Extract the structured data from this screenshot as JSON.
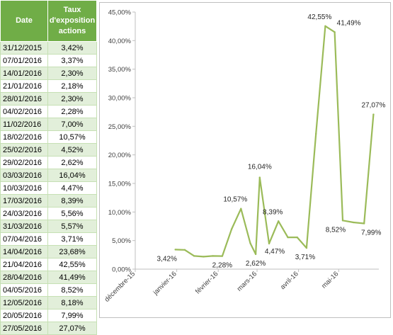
{
  "table": {
    "headers": [
      "Date",
      "Taux d'exposition actions"
    ],
    "rows": [
      [
        "31/12/2015",
        "3,42%"
      ],
      [
        "07/01/2016",
        "3,37%"
      ],
      [
        "14/01/2016",
        "2,30%"
      ],
      [
        "21/01/2016",
        "2,18%"
      ],
      [
        "28/01/2016",
        "2,30%"
      ],
      [
        "04/02/2016",
        "2,28%"
      ],
      [
        "11/02/2016",
        "7,00%"
      ],
      [
        "18/02/2016",
        "10,57%"
      ],
      [
        "25/02/2016",
        "4,52%"
      ],
      [
        "29/02/2016",
        "2,62%"
      ],
      [
        "03/03/2016",
        "16,04%"
      ],
      [
        "10/03/2016",
        "4,47%"
      ],
      [
        "17/03/2016",
        "8,39%"
      ],
      [
        "24/03/2016",
        "5,56%"
      ],
      [
        "31/03/2016",
        "5,57%"
      ],
      [
        "07/04/2016",
        "3,71%"
      ],
      [
        "14/04/2016",
        "23,68%"
      ],
      [
        "21/04/2016",
        "42,55%"
      ],
      [
        "28/04/2016",
        "41,49%"
      ],
      [
        "04/05/2016",
        "8,52%"
      ],
      [
        "12/05/2016",
        "8,18%"
      ],
      [
        "20/05/2016",
        "7,99%"
      ],
      [
        "27/05/2016",
        "27,07%"
      ]
    ]
  },
  "chart_data": {
    "type": "line",
    "title": "",
    "xlabel": "",
    "ylabel": "",
    "line_color": "#9bbb59",
    "x": [
      "2015-12-31",
      "2016-01-07",
      "2016-01-14",
      "2016-01-21",
      "2016-01-28",
      "2016-02-04",
      "2016-02-11",
      "2016-02-18",
      "2016-02-25",
      "2016-02-29",
      "2016-03-03",
      "2016-03-10",
      "2016-03-17",
      "2016-03-24",
      "2016-03-31",
      "2016-04-07",
      "2016-04-14",
      "2016-04-21",
      "2016-04-28",
      "2016-05-04",
      "2016-05-12",
      "2016-05-20",
      "2016-05-27"
    ],
    "y": [
      3.42,
      3.37,
      2.3,
      2.18,
      2.3,
      2.28,
      7.0,
      10.57,
      4.52,
      2.62,
      16.04,
      4.47,
      8.39,
      5.56,
      5.57,
      3.71,
      23.68,
      42.55,
      41.49,
      8.52,
      8.18,
      7.99,
      27.07
    ],
    "ylim": [
      0,
      45
    ],
    "y_ticks": [
      0,
      5,
      10,
      15,
      20,
      25,
      30,
      35,
      40,
      45
    ],
    "y_tick_labels": [
      "0,00%",
      "5,00%",
      "10,00%",
      "15,00%",
      "20,00%",
      "25,00%",
      "30,00%",
      "35,00%",
      "40,00%",
      "45,00%"
    ],
    "x_tick_dates": [
      "2015-12-01",
      "2016-01-01",
      "2016-02-01",
      "2016-03-01",
      "2016-04-01",
      "2016-05-01"
    ],
    "x_tick_labels": [
      "décembre-15",
      "janvier-16",
      "février-16",
      "mars-16",
      "avril-16",
      "mai-16"
    ],
    "point_labels": [
      {
        "i": 0,
        "text": "3,42%"
      },
      {
        "i": 5,
        "text": "2,28%"
      },
      {
        "i": 7,
        "text": "10,57%"
      },
      {
        "i": 9,
        "text": "2,62%"
      },
      {
        "i": 10,
        "text": "16,04%"
      },
      {
        "i": 11,
        "text": "4,47%"
      },
      {
        "i": 12,
        "text": "8,39%"
      },
      {
        "i": 15,
        "text": "3,71%"
      },
      {
        "i": 17,
        "text": "42,55%"
      },
      {
        "i": 18,
        "text": "41,49%"
      },
      {
        "i": 19,
        "text": "8,52%"
      },
      {
        "i": 21,
        "text": "7,99%"
      },
      {
        "i": 22,
        "text": "27,07%"
      }
    ],
    "grid": false
  }
}
